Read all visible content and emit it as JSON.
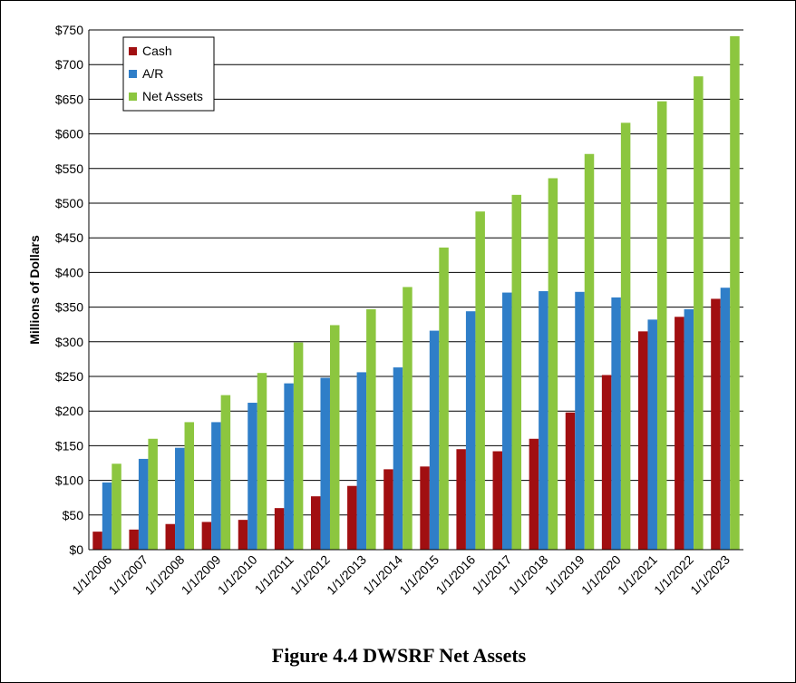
{
  "caption": "Figure 4.4 DWSRF Net Assets",
  "chart_data": {
    "type": "bar",
    "title": "",
    "xlabel": "",
    "ylabel": "Millions of Dollars",
    "ylim": [
      0,
      750
    ],
    "ytick_step": 50,
    "ytick_prefix": "$",
    "grid": true,
    "legend_position": "top-left",
    "categories": [
      "1/1/2006",
      "1/1/2007",
      "1/1/2008",
      "1/1/2009",
      "1/1/2010",
      "1/1/2011",
      "1/1/2012",
      "1/1/2013",
      "1/1/2014",
      "1/1/2015",
      "1/1/2016",
      "1/1/2017",
      "1/1/2018",
      "1/1/2019",
      "1/1/2020",
      "1/1/2021",
      "1/1/2022",
      "1/1/2023"
    ],
    "series": [
      {
        "name": "Cash",
        "color": "#a10f11",
        "values": [
          26,
          29,
          37,
          40,
          43,
          60,
          77,
          92,
          116,
          120,
          145,
          142,
          160,
          198,
          252,
          315,
          336,
          362
        ]
      },
      {
        "name": "A/R",
        "color": "#2f7ec8",
        "values": [
          97,
          131,
          147,
          184,
          212,
          240,
          248,
          256,
          263,
          316,
          344,
          371,
          373,
          372,
          364,
          332,
          347,
          378
        ]
      },
      {
        "name": "Net Assets",
        "color": "#8cc63f",
        "values": [
          124,
          160,
          184,
          223,
          255,
          299,
          324,
          347,
          379,
          436,
          488,
          512,
          536,
          571,
          616,
          647,
          683,
          741
        ]
      }
    ]
  }
}
